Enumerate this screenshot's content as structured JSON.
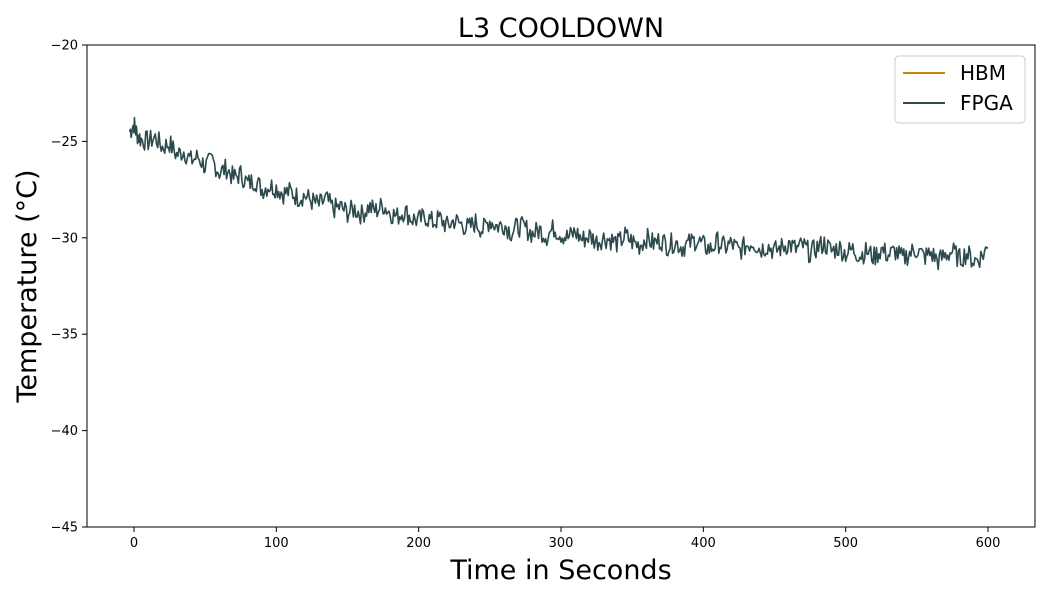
{
  "chart_data": {
    "type": "line",
    "title": "L3 COOLDOWN",
    "xlabel": "Time in Seconds",
    "ylabel": "Temperature (°C)",
    "xlim": [
      -33,
      633
    ],
    "ylim": [
      -45,
      -20
    ],
    "xticks": [
      0,
      100,
      200,
      300,
      400,
      500,
      600
    ],
    "yticks": [
      -45,
      -40,
      -35,
      -30,
      -25,
      -20
    ],
    "ytick_labels": [
      "−45",
      "−40",
      "−35",
      "−30",
      "−25",
      "−20"
    ],
    "grid": false,
    "legend_position": "top-right",
    "series": [
      {
        "name": "HBM",
        "color": "#c8860a",
        "x": [],
        "y": []
      },
      {
        "name": "FPGA",
        "color": "#2c4a4c",
        "x": [
          -3,
          0,
          2,
          5,
          10,
          15,
          20,
          25,
          30,
          35,
          40,
          45,
          50,
          55,
          60,
          65,
          70,
          75,
          80,
          85,
          90,
          95,
          100,
          105,
          110,
          115,
          120,
          125,
          130,
          135,
          140,
          145,
          150,
          155,
          160,
          165,
          170,
          175,
          180,
          185,
          190,
          195,
          200,
          205,
          210,
          215,
          220,
          225,
          230,
          235,
          240,
          245,
          250,
          255,
          260,
          265,
          270,
          275,
          280,
          285,
          290,
          295,
          300,
          305,
          310,
          315,
          320,
          325,
          330,
          335,
          340,
          345,
          350,
          355,
          360,
          365,
          370,
          375,
          380,
          385,
          390,
          395,
          400,
          405,
          410,
          415,
          420,
          425,
          430,
          435,
          440,
          445,
          450,
          455,
          460,
          465,
          470,
          475,
          480,
          485,
          490,
          495,
          500,
          505,
          510,
          515,
          520,
          525,
          530,
          535,
          540,
          545,
          550,
          555,
          560,
          565,
          570,
          575,
          580,
          585,
          590,
          595,
          600
        ],
        "y": [
          -24.5,
          -24.1,
          -24.6,
          -24.9,
          -25.0,
          -24.8,
          -25.3,
          -25.1,
          -25.7,
          -25.5,
          -26.0,
          -25.8,
          -26.3,
          -26.0,
          -26.6,
          -26.4,
          -26.9,
          -26.7,
          -27.2,
          -27.0,
          -27.5,
          -27.3,
          -27.4,
          -27.7,
          -27.6,
          -27.9,
          -27.8,
          -28.1,
          -28.3,
          -28.0,
          -28.5,
          -28.4,
          -28.7,
          -28.5,
          -28.8,
          -28.4,
          -28.6,
          -28.3,
          -28.7,
          -28.9,
          -28.6,
          -29.0,
          -29.1,
          -28.9,
          -29.2,
          -29.0,
          -29.4,
          -29.1,
          -29.3,
          -29.5,
          -29.2,
          -29.6,
          -29.1,
          -29.4,
          -29.3,
          -29.7,
          -29.4,
          -29.5,
          -29.8,
          -29.6,
          -29.9,
          -29.5,
          -29.8,
          -30.0,
          -29.7,
          -30.1,
          -29.9,
          -30.2,
          -30.0,
          -30.1,
          -30.3,
          -29.9,
          -30.2,
          -30.4,
          -30.0,
          -30.3,
          -30.1,
          -30.4,
          -30.2,
          -30.5,
          -30.3,
          -30.1,
          -30.4,
          -30.6,
          -30.2,
          -30.5,
          -30.3,
          -30.7,
          -30.4,
          -30.2,
          -30.6,
          -30.4,
          -30.7,
          -30.5,
          -30.3,
          -30.6,
          -30.4,
          -30.8,
          -30.5,
          -30.3,
          -30.7,
          -30.5,
          -30.8,
          -30.6,
          -30.9,
          -30.7,
          -31.0,
          -30.6,
          -30.9,
          -30.7,
          -31.1,
          -30.8,
          -30.6,
          -31.0,
          -30.8,
          -31.2,
          -30.9,
          -30.7,
          -31.1,
          -30.8,
          -31.2,
          -31.0,
          -30.5
        ]
      }
    ]
  }
}
